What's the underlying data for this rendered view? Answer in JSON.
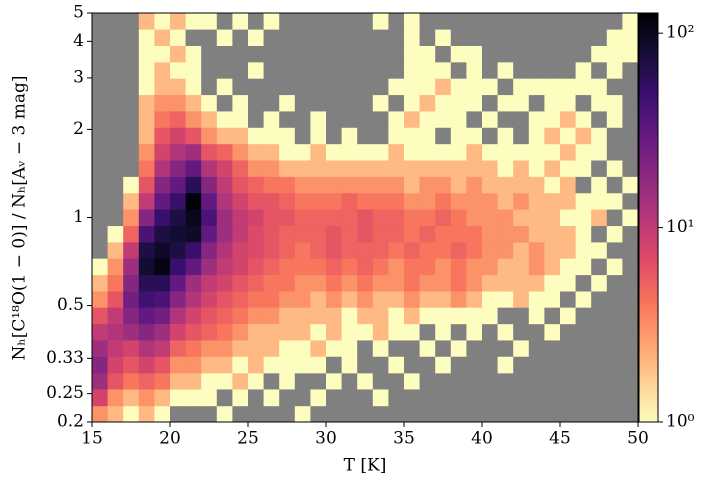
{
  "chart_data": {
    "type": "histogram2d",
    "xlabel": "T [K]",
    "ylabel": "Nₕ[C¹⁸O(1 − 0)] / Nₕ[Aᵥ − 3 mag]",
    "xlim": [
      15,
      50
    ],
    "ylim": [
      0.2,
      5
    ],
    "ylog": true,
    "xticks": [
      15,
      20,
      25,
      30,
      35,
      40,
      45,
      50
    ],
    "yticks": [
      0.2,
      0.25,
      0.33,
      0.5,
      1,
      2,
      3,
      4,
      5
    ],
    "colormap": "magma_r",
    "background": "#808080",
    "clim": [
      1,
      127
    ],
    "clog": true,
    "cticks": [
      {
        "value": 1,
        "label": "10⁰"
      },
      {
        "value": 10,
        "label": "10¹"
      },
      {
        "value": 100,
        "label": "10²"
      }
    ],
    "xbins": [
      15,
      16,
      17,
      18,
      19,
      20,
      21,
      22,
      23,
      24,
      25,
      26,
      27,
      28,
      29,
      30,
      31,
      32,
      33,
      34,
      35,
      36,
      37,
      38,
      39,
      40,
      41,
      42,
      43,
      44,
      45,
      46,
      47,
      48,
      49,
      50
    ],
    "ybins": [
      0.2,
      0.227,
      0.259,
      0.294,
      0.335,
      0.381,
      0.433,
      0.493,
      0.56,
      0.637,
      0.725,
      0.824,
      0.937,
      1.067,
      1.213,
      1.38,
      1.57,
      1.785,
      2.031,
      2.31,
      2.627,
      2.989,
      3.399,
      3.866,
      4.398,
      5
    ],
    "counts": [
      [
        3,
        2,
        1,
        2,
        1,
        0,
        0,
        0,
        1,
        0,
        0,
        0,
        0,
        1,
        0,
        0,
        0,
        0,
        0,
        0,
        0,
        0,
        0,
        0,
        0,
        0,
        0,
        0,
        0,
        0,
        0,
        0,
        0,
        0,
        0
      ],
      [
        8,
        3,
        2,
        3,
        2,
        1,
        1,
        1,
        0,
        1,
        0,
        1,
        0,
        0,
        1,
        0,
        0,
        0,
        1,
        0,
        0,
        0,
        0,
        0,
        0,
        0,
        0,
        0,
        0,
        0,
        0,
        0,
        0,
        0,
        0
      ],
      [
        15,
        6,
        4,
        5,
        4,
        2,
        2,
        1,
        1,
        2,
        1,
        0,
        1,
        0,
        0,
        1,
        0,
        1,
        0,
        0,
        1,
        0,
        0,
        0,
        0,
        0,
        0,
        0,
        0,
        0,
        0,
        0,
        0,
        0,
        0
      ],
      [
        20,
        8,
        6,
        8,
        6,
        3,
        3,
        2,
        2,
        1,
        2,
        1,
        1,
        1,
        1,
        0,
        1,
        0,
        0,
        1,
        0,
        0,
        1,
        0,
        0,
        0,
        1,
        0,
        0,
        0,
        0,
        0,
        0,
        0,
        0
      ],
      [
        15,
        10,
        8,
        12,
        10,
        5,
        4,
        3,
        3,
        2,
        2,
        2,
        1,
        1,
        2,
        1,
        1,
        0,
        1,
        0,
        0,
        1,
        0,
        1,
        0,
        0,
        0,
        1,
        0,
        0,
        0,
        0,
        0,
        0,
        0
      ],
      [
        10,
        12,
        15,
        20,
        15,
        8,
        6,
        5,
        4,
        3,
        2,
        2,
        2,
        2,
        1,
        2,
        1,
        1,
        2,
        1,
        1,
        0,
        1,
        0,
        1,
        0,
        1,
        0,
        0,
        1,
        0,
        0,
        0,
        0,
        0
      ],
      [
        6,
        10,
        20,
        30,
        25,
        12,
        8,
        6,
        5,
        4,
        3,
        3,
        2,
        2,
        2,
        2,
        1,
        2,
        2,
        1,
        2,
        1,
        1,
        1,
        1,
        1,
        0,
        0,
        1,
        0,
        1,
        0,
        0,
        0,
        0
      ],
      [
        3,
        6,
        25,
        45,
        40,
        20,
        12,
        8,
        6,
        5,
        4,
        4,
        3,
        3,
        2,
        3,
        2,
        3,
        2,
        2,
        3,
        2,
        2,
        3,
        2,
        1,
        1,
        2,
        1,
        1,
        0,
        1,
        0,
        0,
        0
      ],
      [
        2,
        4,
        20,
        60,
        60,
        30,
        15,
        10,
        8,
        6,
        5,
        4,
        4,
        3,
        3,
        4,
        3,
        4,
        3,
        3,
        4,
        3,
        3,
        4,
        3,
        2,
        2,
        2,
        2,
        1,
        1,
        0,
        1,
        0,
        0
      ],
      [
        1,
        3,
        15,
        80,
        110,
        50,
        30,
        15,
        10,
        8,
        6,
        5,
        4,
        4,
        4,
        5,
        4,
        5,
        4,
        3,
        4,
        4,
        3,
        4,
        3,
        3,
        2,
        2,
        3,
        2,
        1,
        1,
        0,
        1,
        0
      ],
      [
        0,
        2,
        10,
        70,
        90,
        70,
        50,
        20,
        12,
        8,
        7,
        6,
        5,
        4,
        5,
        6,
        5,
        5,
        5,
        4,
        5,
        4,
        4,
        5,
        4,
        3,
        3,
        2,
        3,
        2,
        2,
        1,
        1,
        0,
        0
      ],
      [
        0,
        1,
        5,
        40,
        70,
        80,
        90,
        30,
        15,
        10,
        7,
        6,
        5,
        5,
        5,
        6,
        5,
        6,
        5,
        5,
        4,
        5,
        4,
        4,
        4,
        3,
        3,
        3,
        2,
        2,
        2,
        1,
        0,
        1,
        0
      ],
      [
        0,
        0,
        3,
        20,
        50,
        70,
        100,
        40,
        15,
        10,
        8,
        6,
        6,
        5,
        5,
        5,
        5,
        6,
        5,
        5,
        4,
        4,
        5,
        4,
        3,
        3,
        3,
        2,
        2,
        2,
        1,
        1,
        2,
        0,
        1
      ],
      [
        0,
        0,
        2,
        10,
        30,
        50,
        120,
        30,
        12,
        8,
        6,
        6,
        5,
        4,
        4,
        4,
        5,
        4,
        4,
        4,
        3,
        3,
        4,
        3,
        3,
        3,
        2,
        3,
        2,
        2,
        2,
        1,
        1,
        1,
        0
      ],
      [
        0,
        0,
        1,
        6,
        20,
        30,
        60,
        20,
        10,
        6,
        5,
        4,
        4,
        3,
        3,
        3,
        3,
        3,
        3,
        3,
        2,
        3,
        3,
        2,
        3,
        2,
        2,
        2,
        2,
        1,
        2,
        0,
        1,
        0,
        1
      ],
      [
        0,
        0,
        0,
        4,
        12,
        20,
        30,
        12,
        8,
        5,
        3,
        3,
        2,
        2,
        2,
        2,
        2,
        2,
        2,
        2,
        2,
        2,
        2,
        2,
        2,
        2,
        1,
        2,
        1,
        2,
        1,
        1,
        0,
        1,
        0
      ],
      [
        0,
        0,
        0,
        3,
        8,
        12,
        15,
        6,
        5,
        3,
        2,
        2,
        1,
        1,
        2,
        1,
        1,
        1,
        1,
        2,
        1,
        1,
        1,
        1,
        2,
        1,
        1,
        1,
        1,
        1,
        2,
        1,
        1,
        0,
        0
      ],
      [
        0,
        0,
        0,
        2,
        6,
        8,
        6,
        3,
        2,
        2,
        1,
        1,
        1,
        0,
        1,
        0,
        1,
        0,
        0,
        1,
        1,
        1,
        0,
        1,
        1,
        0,
        1,
        0,
        1,
        2,
        1,
        2,
        1,
        0,
        0
      ],
      [
        0,
        0,
        0,
        2,
        4,
        5,
        3,
        2,
        1,
        1,
        0,
        1,
        0,
        0,
        1,
        0,
        0,
        0,
        0,
        1,
        2,
        1,
        1,
        1,
        0,
        1,
        0,
        0,
        1,
        1,
        2,
        1,
        0,
        1,
        0
      ],
      [
        0,
        0,
        0,
        2,
        3,
        3,
        2,
        1,
        0,
        1,
        0,
        0,
        1,
        0,
        0,
        0,
        0,
        0,
        1,
        0,
        1,
        2,
        1,
        1,
        1,
        0,
        1,
        1,
        0,
        1,
        1,
        0,
        1,
        1,
        0
      ],
      [
        0,
        0,
        0,
        1,
        2,
        2,
        1,
        0,
        1,
        0,
        0,
        0,
        0,
        0,
        0,
        0,
        0,
        0,
        0,
        1,
        1,
        1,
        2,
        1,
        1,
        1,
        0,
        1,
        1,
        1,
        1,
        1,
        1,
        0,
        0
      ],
      [
        0,
        0,
        0,
        1,
        2,
        1,
        1,
        0,
        0,
        0,
        1,
        0,
        0,
        0,
        0,
        0,
        0,
        0,
        0,
        0,
        1,
        1,
        1,
        0,
        1,
        0,
        1,
        0,
        0,
        0,
        0,
        1,
        0,
        1,
        0
      ],
      [
        0,
        0,
        0,
        1,
        1,
        2,
        1,
        0,
        0,
        0,
        0,
        0,
        0,
        0,
        0,
        0,
        0,
        0,
        0,
        0,
        1,
        1,
        0,
        1,
        1,
        0,
        0,
        0,
        0,
        0,
        0,
        0,
        1,
        1,
        1
      ],
      [
        0,
        0,
        0,
        1,
        2,
        1,
        0,
        0,
        1,
        0,
        1,
        0,
        0,
        0,
        0,
        0,
        0,
        0,
        0,
        0,
        1,
        0,
        1,
        0,
        0,
        0,
        0,
        0,
        0,
        0,
        0,
        0,
        0,
        1,
        1
      ],
      [
        0,
        0,
        0,
        2,
        1,
        2,
        1,
        1,
        0,
        1,
        0,
        1,
        0,
        0,
        0,
        0,
        0,
        0,
        1,
        0,
        1,
        0,
        0,
        0,
        0,
        0,
        0,
        0,
        0,
        0,
        0,
        0,
        0,
        0,
        1
      ]
    ]
  }
}
